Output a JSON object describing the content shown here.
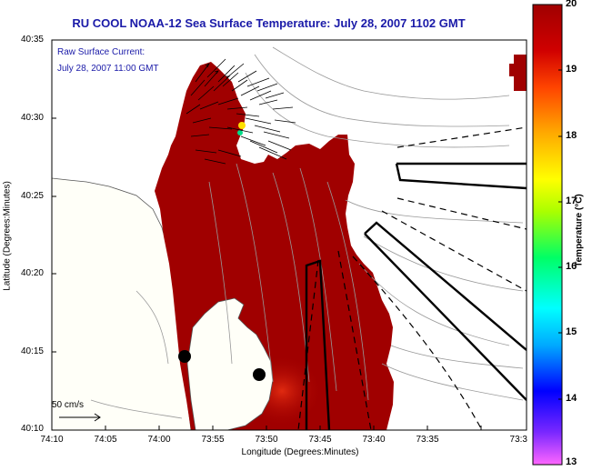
{
  "title": "RU COOL  NOAA-12  Sea Surface Temperature:  July 28, 2007 1102 GMT",
  "current_note": {
    "line1": "Raw Surface Current:",
    "line2": "July 28, 2007 11:00 GMT"
  },
  "axes": {
    "xlabel": "Longitude (Degrees:Minutes)",
    "ylabel": "Latitude (Degrees:Minutes)",
    "yticks": [
      "40:35",
      "40:30",
      "40:25",
      "40:20",
      "40:15",
      "40:10"
    ],
    "xticks": [
      "74:10",
      "74:05",
      "74:00",
      "73:55",
      "73:50",
      "73:45",
      "73:40",
      "73:35",
      "73:3"
    ]
  },
  "colorbar": {
    "label": "Temperature (°C)",
    "ticks": [
      "20",
      "19",
      "18",
      "17",
      "16",
      "15",
      "14",
      "13"
    ],
    "min": 13,
    "max": 20,
    "colors": [
      "#ff66ff",
      "#7a28ff",
      "#0000ff",
      "#00aaff",
      "#00ffff",
      "#00ff66",
      "#aaff00",
      "#ffff00",
      "#ffaa00",
      "#ff5500",
      "#ee0000",
      "#a00000"
    ]
  },
  "scale_bar": {
    "label": "50 cm/s"
  },
  "colors": {
    "sst_fill": "#a00000",
    "land": "#fffff8",
    "title_text": "#1a1aa8"
  }
}
